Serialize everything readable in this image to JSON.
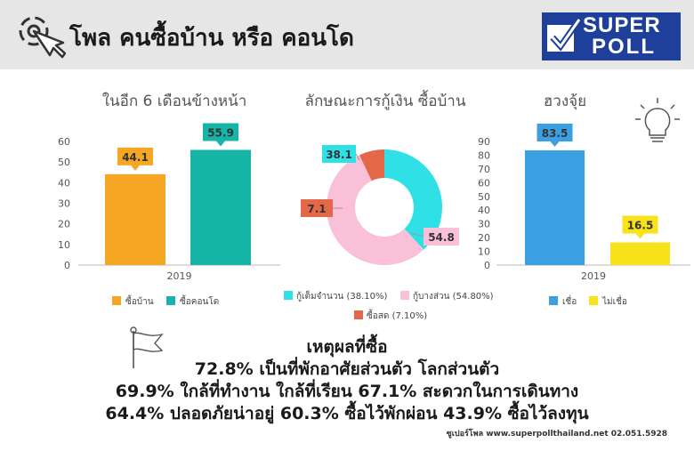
{
  "header": {
    "title": "โพล คนซื้อบ้าน หรือ คอนโด",
    "logo_line1": "SUPER",
    "logo_line2": "POLL"
  },
  "colors": {
    "orange": "#f5a623",
    "teal": "#17b5a8",
    "cyan": "#2fe0e6",
    "pink": "#f9c0d8",
    "red": "#e5674a",
    "blue": "#3aa0e2",
    "yellow": "#f8e21c"
  },
  "icons": [
    "cursor-click-icon",
    "lightbulb-icon",
    "flag-icon"
  ],
  "chart_data": [
    {
      "type": "bar",
      "title": "ในอีก 6 เดือนข้างหน้า",
      "categories": [
        "2019"
      ],
      "series": [
        {
          "name": "ซื้อบ้าน",
          "values": [
            44.1
          ],
          "color": "#f5a623"
        },
        {
          "name": "ซื้อคอนโด",
          "values": [
            55.9
          ],
          "color": "#17b5a8"
        }
      ],
      "ylim": [
        0,
        60
      ],
      "yticks": [
        "0",
        "10",
        "20",
        "30",
        "40",
        "50",
        "60"
      ],
      "legend": "bottom"
    },
    {
      "type": "pie",
      "title": "ลักษณะการกู้เงิน ซื้อบ้าน",
      "slices": [
        {
          "name": "กู้เต็มจำนวน (38.10%)",
          "value": 38.1,
          "label": "38.1",
          "color": "#2fe0e6"
        },
        {
          "name": "กู้บางส่วน (54.80%)",
          "value": 54.8,
          "label": "54.8",
          "color": "#f9c0d8"
        },
        {
          "name": "ซื้อสด (7.10%)",
          "value": 7.1,
          "label": "7.1",
          "color": "#e5674a"
        }
      ],
      "donut": true,
      "legend": "bottom"
    },
    {
      "type": "bar",
      "title": "ฮวงจุ้ย",
      "categories": [
        "2019"
      ],
      "series": [
        {
          "name": "เชื่อ",
          "values": [
            83.5
          ],
          "color": "#3aa0e2"
        },
        {
          "name": "ไม่เชื่อ",
          "values": [
            16.5
          ],
          "color": "#f8e21c"
        }
      ],
      "ylim": [
        0,
        90
      ],
      "yticks": [
        "0",
        "10",
        "20",
        "30",
        "40",
        "50",
        "60",
        "70",
        "80",
        "90"
      ],
      "legend": "bottom"
    }
  ],
  "reasons": {
    "heading": "เหตุผลที่ซื้อ",
    "line1": "72.8% เป็นที่พักอาศัยส่วนตัว โลกส่วนตัว",
    "line2": "69.9% ใกล้ที่ทำงาน ใกล้ที่เรียน  67.1% สะดวกในการเดินทาง",
    "line3": "64.4% ปลอดภัยน่าอยู่  60.3% ซื้อไว้พักผ่อน 43.9% ซื้อไว้ลงทุน"
  },
  "footer": "ซูเปอร์โพล www.superpollthailand.net 02.051.5928"
}
